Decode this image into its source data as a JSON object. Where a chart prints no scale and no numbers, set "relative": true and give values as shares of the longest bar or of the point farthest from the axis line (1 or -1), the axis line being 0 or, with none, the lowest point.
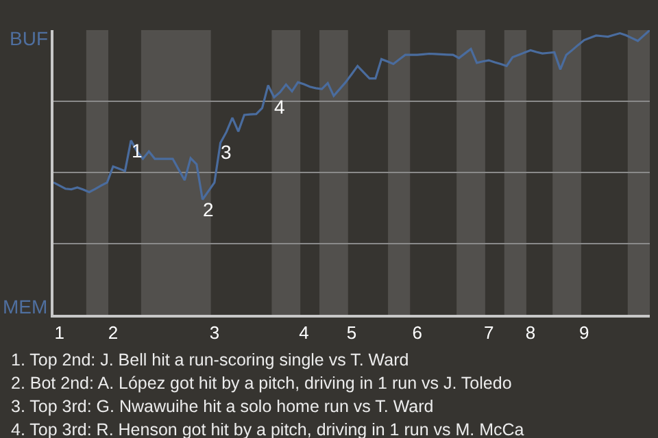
{
  "chart_data": {
    "type": "line",
    "relative": true,
    "categories": [
      null,
      "1",
      null,
      null,
      null,
      null,
      null,
      null,
      null,
      null,
      "2",
      null,
      null,
      null,
      null,
      null,
      null,
      null,
      null,
      null,
      null,
      null,
      null,
      null,
      null,
      null,
      null,
      "3",
      null,
      null,
      null,
      null,
      null,
      null,
      null,
      null,
      null,
      null,
      null,
      null,
      null,
      null,
      "4",
      null,
      null,
      null,
      null,
      null,
      null,
      null,
      "5",
      null,
      null,
      null,
      null,
      null,
      null,
      null,
      null,
      null,
      null,
      "6",
      null,
      null,
      null,
      null,
      null,
      null,
      null,
      null,
      null,
      null,
      null,
      "7",
      null,
      null,
      null,
      null,
      null,
      null,
      "8",
      null,
      null,
      null,
      null,
      null,
      null,
      null,
      null,
      "9",
      null,
      null,
      null,
      null,
      null,
      null,
      null,
      null,
      null,
      null,
      null
    ],
    "series": [
      {
        "color": "#4a6c9e",
        "values": [
          0.465,
          0.454,
          0.443,
          0.441,
          0.447,
          0.44,
          0.431,
          0.442,
          0.454,
          0.465,
          0.521,
          0.513,
          0.505,
          0.612,
          0.575,
          0.548,
          0.574,
          0.548,
          0.548,
          0.548,
          0.548,
          0.51,
          0.473,
          0.55,
          0.529,
          0.405,
          0.435,
          0.465,
          0.604,
          0.642,
          0.692,
          0.644,
          0.702,
          0.704,
          0.705,
          0.726,
          0.806,
          0.764,
          0.782,
          0.809,
          0.785,
          0.817,
          0.81,
          0.801,
          0.796,
          0.793,
          0.814,
          0.769,
          0.793,
          0.817,
          0.845,
          0.874,
          0.852,
          0.83,
          0.83,
          0.898,
          0.89,
          0.881,
          0.897,
          0.913,
          0.913,
          0.913,
          0.915,
          0.917,
          0.916,
          0.915,
          0.914,
          0.913,
          0.902,
          0.918,
          0.934,
          0.885,
          0.89,
          0.894,
          0.887,
          0.881,
          0.874,
          0.905,
          0.913,
          0.921,
          0.929,
          0.923,
          0.918,
          0.92,
          0.922,
          0.862,
          0.913,
          0.93,
          0.948,
          0.965,
          0.973,
          0.981,
          0.979,
          0.977,
          0.983,
          0.989,
          0.982,
          0.972,
          0.962,
          0.981,
          1
        ]
      }
    ],
    "grid": "y",
    "marker": "none",
    "line_style": "solid",
    "annotations": [
      {
        "text": "1",
        "y": 0.612
      },
      {
        "text": "2",
        "y": 0.405
      },
      {
        "text": "3",
        "y": 0.604
      },
      {
        "text": "4",
        "y": 0.764
      },
      "BUF",
      "MEM",
      "1. Top 2nd: J. Bell hit a run-scoring single vs T. Ward",
      "2. Bot 2nd: A. López got hit by a pitch, driving in 1 run vs J. Toledo",
      "3. Top 3rd: G. Nwawuihe hit a solo home run vs T. Ward",
      "4. Top 3rd: R. Henson got hit by a pitch, driving in 1 run vs M. McCa"
    ]
  }
}
